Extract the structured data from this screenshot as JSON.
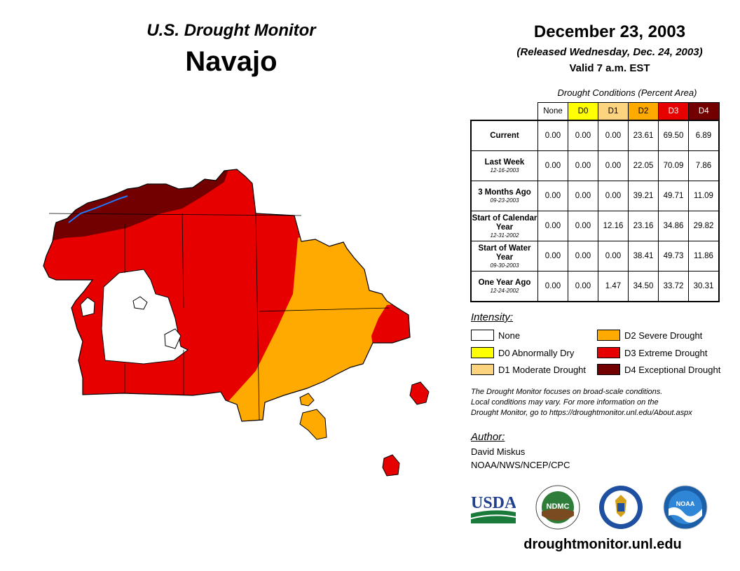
{
  "header": {
    "title": "U.S. Drought Monitor",
    "region": "Navajo",
    "date": "December 23, 2003",
    "released": "(Released Wednesday, Dec. 24, 2003)",
    "valid": "Valid 7 a.m. EST"
  },
  "table": {
    "caption": "Drought Conditions (Percent Area)",
    "columns": [
      "None",
      "D0",
      "D1",
      "D2",
      "D3",
      "D4"
    ],
    "column_colors": [
      "#ffffff",
      "#ffff00",
      "#fcd37f",
      "#ffaa00",
      "#e60000",
      "#730000"
    ],
    "rows": [
      {
        "label": "Current",
        "date": "",
        "values": [
          "0.00",
          "0.00",
          "0.00",
          "23.61",
          "69.50",
          "6.89"
        ]
      },
      {
        "label": "Last Week",
        "date": "12-16-2003",
        "values": [
          "0.00",
          "0.00",
          "0.00",
          "22.05",
          "70.09",
          "7.86"
        ]
      },
      {
        "label": "3 Months Ago",
        "date": "09-23-2003",
        "values": [
          "0.00",
          "0.00",
          "0.00",
          "39.21",
          "49.71",
          "11.09"
        ]
      },
      {
        "label": "Start of Calendar Year",
        "date": "12-31-2002",
        "values": [
          "0.00",
          "0.00",
          "12.16",
          "23.16",
          "34.86",
          "29.82"
        ]
      },
      {
        "label": "Start of Water Year",
        "date": "09-30-2003",
        "values": [
          "0.00",
          "0.00",
          "0.00",
          "38.41",
          "49.73",
          "11.86"
        ]
      },
      {
        "label": "One Year Ago",
        "date": "12-24-2002",
        "values": [
          "0.00",
          "0.00",
          "1.47",
          "34.50",
          "33.72",
          "30.31"
        ]
      }
    ]
  },
  "legend": {
    "title": "Intensity:",
    "items": [
      {
        "label": "None",
        "color": "#ffffff"
      },
      {
        "label": "D0 Abnormally Dry",
        "color": "#ffff00"
      },
      {
        "label": "D1 Moderate Drought",
        "color": "#fcd37f"
      },
      {
        "label": "D2 Severe Drought",
        "color": "#ffaa00"
      },
      {
        "label": "D3 Extreme Drought",
        "color": "#e60000"
      },
      {
        "label": "D4 Exceptional Drought",
        "color": "#730000"
      }
    ]
  },
  "disclaimer": {
    "line1": "The Drought Monitor focuses on broad-scale conditions.",
    "line2": "Local conditions may vary. For more information on the",
    "line3": "Drought Monitor, go to https://droughtmonitor.unl.edu/About.aspx"
  },
  "author": {
    "title": "Author:",
    "name": "David Miskus",
    "org": "NOAA/NWS/NCEP/CPC"
  },
  "logos": {
    "usda": "USDA",
    "ndmc": "NDMC",
    "noaa": "NOAA"
  },
  "footer": {
    "url": "droughtmonitor.unl.edu"
  }
}
